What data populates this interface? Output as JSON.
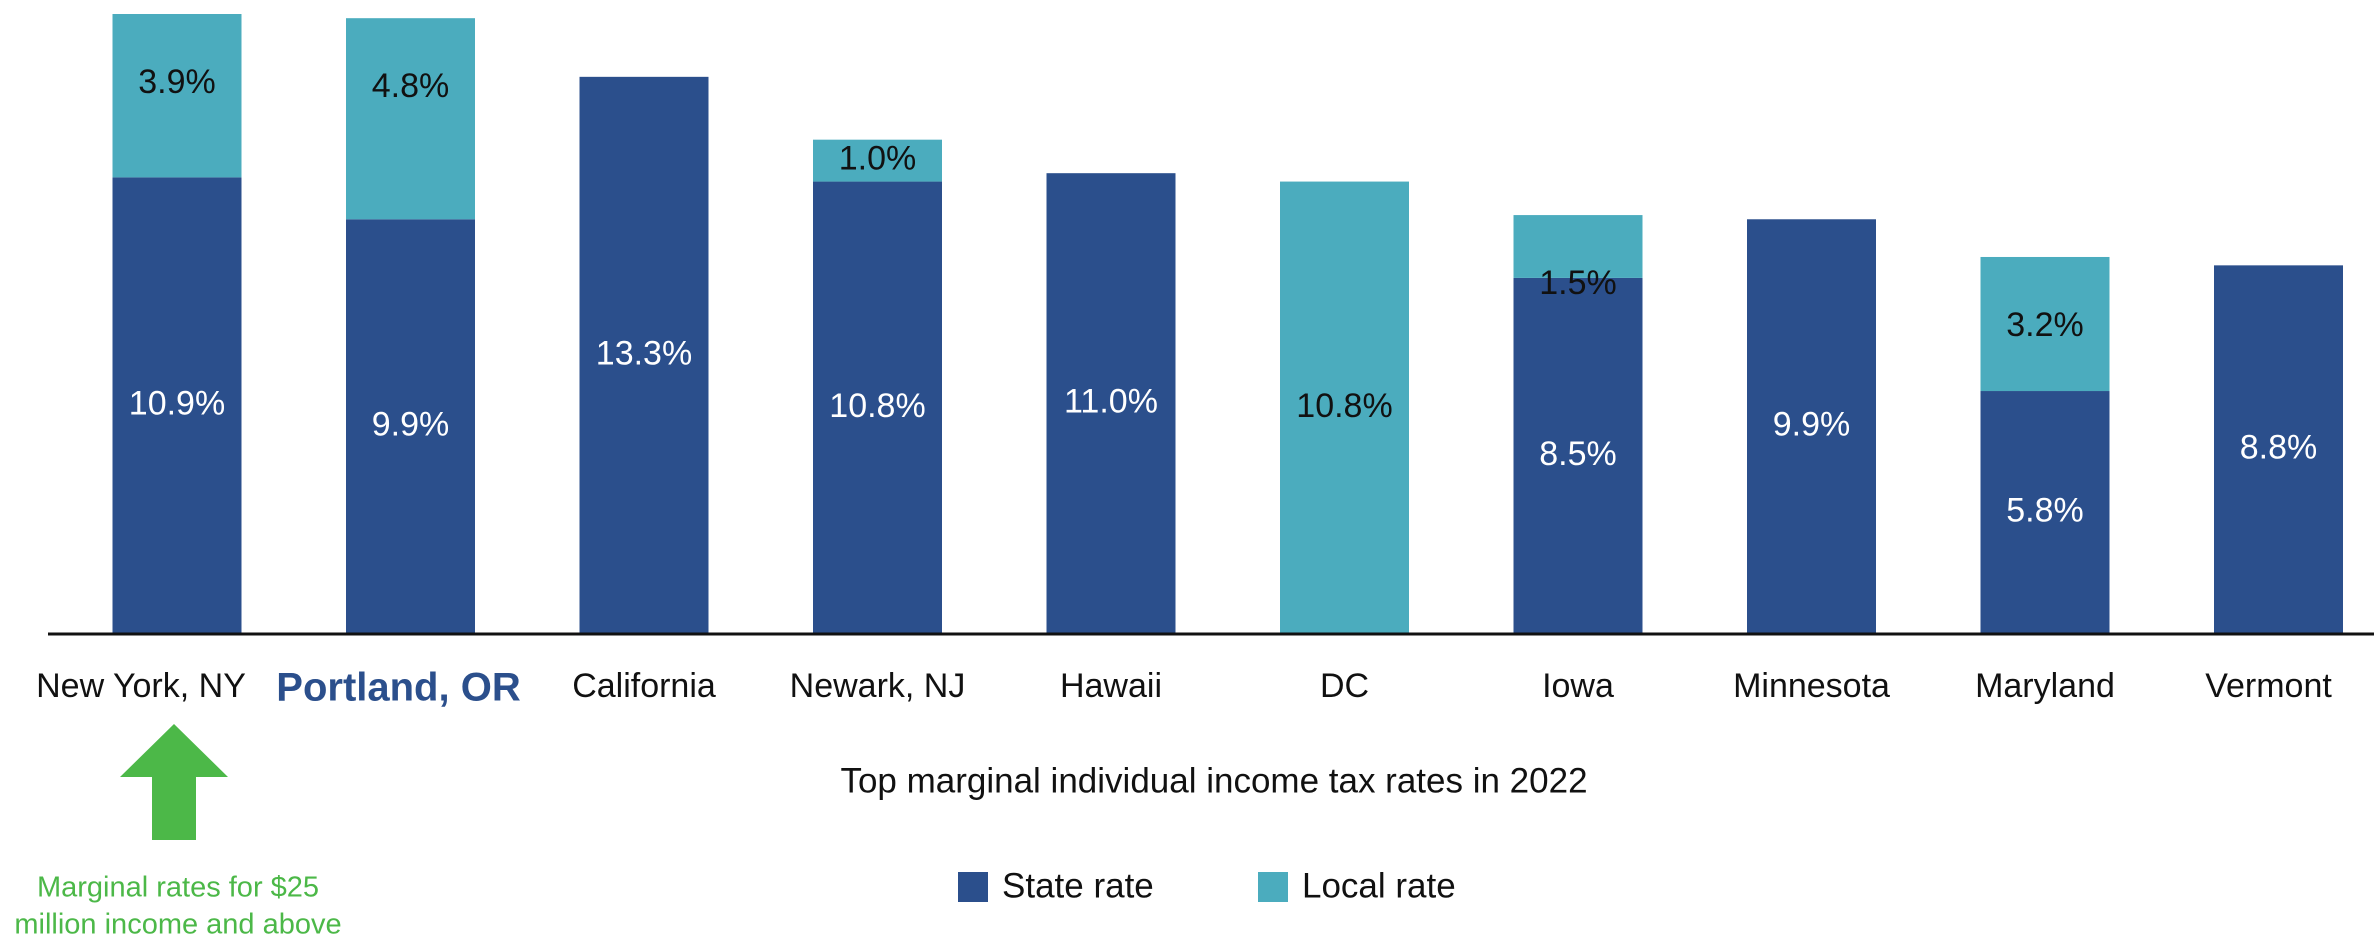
{
  "chart_data": {
    "type": "stacked_bar",
    "categories": [
      "New York, NY",
      "Portland, OR",
      "California",
      "Newark, NJ",
      "Hawaii",
      "DC",
      "Iowa",
      "Minnesota",
      "Maryland",
      "Vermont"
    ],
    "highlight_index": 1,
    "series": [
      {
        "name": "State rate",
        "color": "#2b4f8c",
        "label_color": "#ffffff",
        "values": [
          10.9,
          9.9,
          13.3,
          10.8,
          11.0,
          null,
          8.5,
          9.9,
          5.8,
          8.8
        ],
        "value_labels": [
          "10.9%",
          "9.9%",
          "13.3%",
          "10.8%",
          "11.0%",
          null,
          "8.5%",
          "9.9%",
          "5.8%",
          "8.8%"
        ]
      },
      {
        "name": "Local rate",
        "color": "#4bacbe",
        "label_color": "#111111",
        "values": [
          3.9,
          4.8,
          null,
          1.0,
          null,
          10.8,
          1.5,
          null,
          3.2,
          null
        ],
        "value_labels": [
          "3.9%",
          "4.8%",
          null,
          "1.0%",
          null,
          "10.8%",
          "1.5%",
          null,
          "3.2%",
          null
        ]
      }
    ],
    "xlabel": "Top marginal individual income tax rates in 2022",
    "annotation": [
      "Marginal rates for $25",
      "million income and above"
    ],
    "annotation_color": "#4cb848"
  }
}
